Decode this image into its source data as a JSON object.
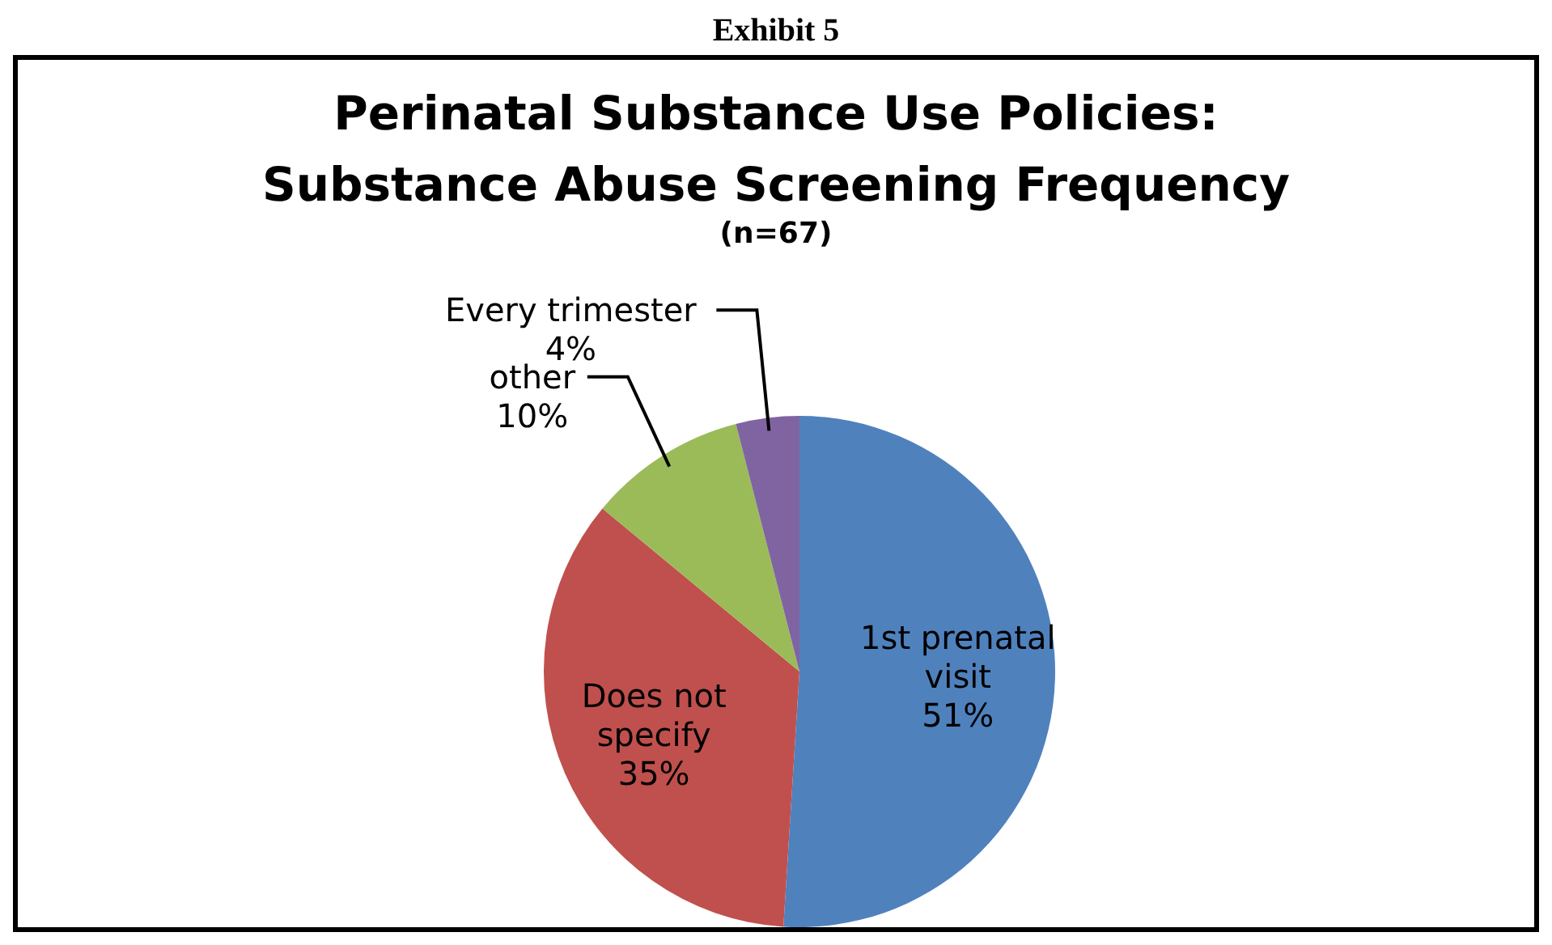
{
  "chart_data": {
    "type": "pie",
    "title": "Perinatal Substance Use Policies: Substance Abuse Screening Frequency",
    "subtitle": "(n=67)",
    "annotations": [
      "Exhibit 5"
    ],
    "categories": [
      "1st prenatal visit",
      "Does not specify",
      "other",
      "Every trimester"
    ],
    "values": [
      51,
      35,
      10,
      4
    ],
    "value_labels": [
      "51%",
      "35%",
      "10%",
      "4%"
    ],
    "colors": [
      "#4f81bd",
      "#c0504d",
      "#9bbb59",
      "#8064a2"
    ],
    "legend": false
  }
}
